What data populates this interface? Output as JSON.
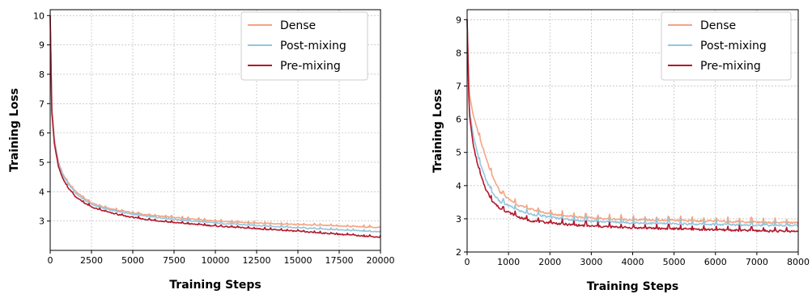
{
  "chart_data": [
    {
      "type": "line",
      "xlabel": "Training Steps",
      "ylabel": "Training Loss",
      "xlim": [
        0,
        20000
      ],
      "ylim": [
        2.0,
        10.2
      ],
      "xticks": [
        0,
        2500,
        5000,
        7500,
        10000,
        12500,
        15000,
        17500,
        20000
      ],
      "yticks": [
        3,
        4,
        5,
        6,
        7,
        8,
        9,
        10
      ],
      "grid": true,
      "legend_position": "top-right",
      "series": [
        {
          "name": "Dense",
          "color": "#f4a582",
          "x": [
            0,
            100,
            250,
            500,
            750,
            1000,
            1500,
            2000,
            2500,
            3000,
            4000,
            5000,
            6000,
            7500,
            10000,
            12500,
            15000,
            17500,
            20000
          ],
          "y": [
            10.0,
            6.9,
            5.8,
            5.0,
            4.62,
            4.38,
            4.03,
            3.8,
            3.62,
            3.52,
            3.38,
            3.28,
            3.2,
            3.12,
            3.0,
            2.93,
            2.88,
            2.83,
            2.78
          ]
        },
        {
          "name": "Post-mixing",
          "color": "#92c5de",
          "x": [
            0,
            100,
            250,
            500,
            750,
            1000,
            1500,
            2000,
            2500,
            3000,
            4000,
            5000,
            6000,
            7500,
            10000,
            12500,
            15000,
            17500,
            20000
          ],
          "y": [
            10.0,
            6.8,
            5.75,
            4.95,
            4.57,
            4.33,
            3.97,
            3.74,
            3.57,
            3.47,
            3.33,
            3.23,
            3.15,
            3.06,
            2.93,
            2.85,
            2.77,
            2.7,
            2.63
          ]
        },
        {
          "name": "Pre-mixing",
          "color": "#b2182b",
          "x": [
            0,
            100,
            250,
            500,
            750,
            1000,
            1500,
            2000,
            2500,
            3000,
            4000,
            5000,
            6000,
            7500,
            10000,
            12500,
            15000,
            17500,
            20000
          ],
          "y": [
            10.0,
            6.7,
            5.65,
            4.85,
            4.46,
            4.2,
            3.85,
            3.64,
            3.48,
            3.38,
            3.23,
            3.12,
            3.04,
            2.95,
            2.83,
            2.74,
            2.65,
            2.55,
            2.45
          ]
        }
      ]
    },
    {
      "type": "line",
      "xlabel": "Training Steps",
      "ylabel": "Training Loss",
      "xlim": [
        0,
        8000
      ],
      "ylim": [
        2.0,
        9.3
      ],
      "xticks": [
        0,
        1000,
        2000,
        3000,
        4000,
        5000,
        6000,
        7000,
        8000
      ],
      "yticks": [
        2,
        3,
        4,
        5,
        6,
        7,
        8,
        9
      ],
      "grid": true,
      "legend_position": "top-right",
      "series": [
        {
          "name": "Dense",
          "color": "#f4a582",
          "x": [
            0,
            50,
            150,
            300,
            450,
            600,
            800,
            1000,
            1250,
            1500,
            2000,
            2500,
            3000,
            4000,
            5000,
            6000,
            7000,
            8000
          ],
          "y": [
            9.0,
            6.8,
            6.1,
            5.45,
            4.85,
            4.3,
            3.8,
            3.6,
            3.4,
            3.3,
            3.15,
            3.08,
            3.02,
            2.97,
            2.95,
            2.93,
            2.9,
            2.88
          ]
        },
        {
          "name": "Post-mixing",
          "color": "#92c5de",
          "x": [
            0,
            50,
            150,
            300,
            450,
            600,
            800,
            1000,
            1250,
            1500,
            2000,
            2500,
            3000,
            4000,
            5000,
            6000,
            7000,
            8000
          ],
          "y": [
            9.0,
            6.3,
            5.5,
            4.7,
            4.2,
            3.8,
            3.5,
            3.4,
            3.25,
            3.15,
            3.05,
            2.97,
            2.93,
            2.88,
            2.85,
            2.83,
            2.81,
            2.8
          ]
        },
        {
          "name": "Pre-mixing",
          "color": "#b2182b",
          "x": [
            0,
            50,
            150,
            300,
            450,
            600,
            800,
            1000,
            1250,
            1500,
            2000,
            2500,
            3000,
            4000,
            5000,
            6000,
            7000,
            8000
          ],
          "y": [
            9.0,
            6.2,
            5.2,
            4.4,
            3.9,
            3.55,
            3.3,
            3.2,
            3.05,
            2.95,
            2.88,
            2.82,
            2.78,
            2.73,
            2.7,
            2.67,
            2.64,
            2.62
          ]
        }
      ]
    }
  ]
}
